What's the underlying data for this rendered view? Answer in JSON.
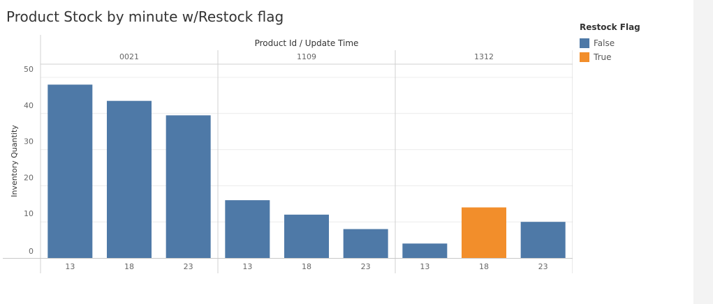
{
  "chart_data": {
    "type": "bar",
    "title": "Product Stock by minute w/Restock flag",
    "column_header": "Product Id / Update Time",
    "ylabel": "Inventory Quantity",
    "ylim": [
      0,
      50
    ],
    "yticks": [
      0,
      10,
      20,
      30,
      40,
      50
    ],
    "groups": [
      {
        "product_id": "0021",
        "times": [
          "13",
          "18",
          "23"
        ],
        "values": [
          48,
          43.5,
          39.5
        ],
        "restock": [
          "False",
          "False",
          "False"
        ]
      },
      {
        "product_id": "1109",
        "times": [
          "13",
          "18",
          "23"
        ],
        "values": [
          16,
          12,
          8
        ],
        "restock": [
          "False",
          "False",
          "False"
        ]
      },
      {
        "product_id": "1312",
        "times": [
          "13",
          "18",
          "23"
        ],
        "values": [
          4,
          14,
          10
        ],
        "restock": [
          "False",
          "True",
          "False"
        ]
      }
    ],
    "legend": {
      "title": "Restock Flag",
      "items": [
        {
          "label": "False",
          "color": "#4e79a7"
        },
        {
          "label": "True",
          "color": "#f28e2b"
        }
      ]
    }
  }
}
